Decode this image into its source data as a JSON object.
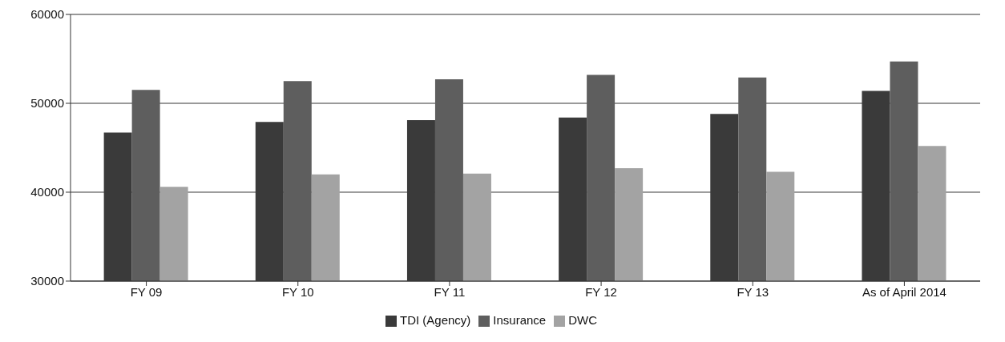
{
  "chart_data": {
    "type": "bar",
    "categories": [
      "FY 09",
      "FY 10",
      "FY 11",
      "FY 12",
      "FY 13",
      "As of April 2014"
    ],
    "series": [
      {
        "name": "TDI (Agency)",
        "color": "#3a3a3a",
        "values": [
          46700,
          47900,
          48100,
          48400,
          48800,
          51400
        ]
      },
      {
        "name": "Insurance",
        "color": "#5e5e5e",
        "values": [
          51500,
          52500,
          52700,
          53200,
          52900,
          54700
        ]
      },
      {
        "name": "DWC",
        "color": "#a3a3a3",
        "values": [
          40600,
          42000,
          42100,
          42700,
          42300,
          45200
        ]
      }
    ],
    "ylim": [
      30000,
      60000
    ],
    "yticks": [
      30000,
      40000,
      50000,
      60000
    ],
    "grid": "y",
    "legend": "bottom"
  }
}
